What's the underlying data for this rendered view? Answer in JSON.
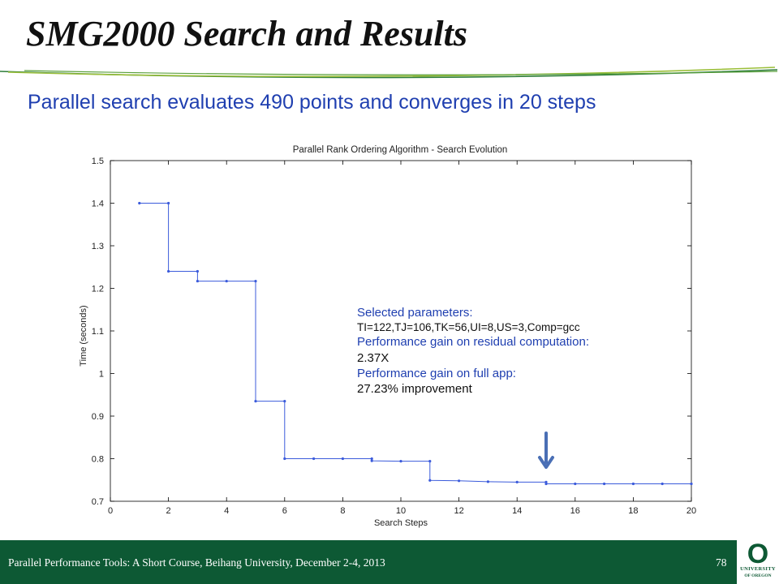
{
  "slide": {
    "title": "SMG2000 Search and Results",
    "subtitle": "Parallel search evaluates 490 points and converges in 20 steps",
    "footer": "Parallel Performance Tools: A Short Course, Beihang University, December 2-4, 2013",
    "page_number": "78",
    "logo_letter": "O",
    "logo_line1": "UNIVERSITY",
    "logo_line2": "OF OREGON",
    "colors": {
      "footer_bg": "#0d5934",
      "accent_blue": "#1f3fb0",
      "series": "#3b5bdb"
    }
  },
  "annotation": {
    "line1": "Selected parameters:",
    "line2": "TI=122,TJ=106,TK=56,UI=8,US=3,Comp=gcc",
    "line3": "Performance gain on residual computation:",
    "line4": "2.37X",
    "line5": "Performance gain on full app:",
    "line6": "27.23% improvement"
  },
  "chart_data": {
    "type": "line",
    "title": "Parallel Rank Ordering Algorithm - Search Evolution",
    "xlabel": "Search Steps",
    "ylabel": "Time (seconds)",
    "xlim": [
      0,
      20
    ],
    "ylim": [
      0.7,
      1.5
    ],
    "xticks": [
      0,
      2,
      4,
      6,
      8,
      10,
      12,
      14,
      16,
      18,
      20
    ],
    "yticks": [
      0.7,
      0.8,
      0.9,
      1,
      1.1,
      1.2,
      1.3,
      1.4,
      1.5
    ],
    "grid": false,
    "series": [
      {
        "points": [
          [
            1,
            1.4
          ],
          [
            2,
            1.4
          ],
          [
            2,
            1.24
          ],
          [
            3,
            1.24
          ],
          [
            3,
            1.217
          ],
          [
            4,
            1.217
          ],
          [
            5,
            1.217
          ],
          [
            5,
            0.935
          ],
          [
            6,
            0.935
          ],
          [
            6,
            0.8
          ],
          [
            7,
            0.8
          ],
          [
            8,
            0.8
          ],
          [
            9,
            0.8
          ],
          [
            9,
            0.795
          ],
          [
            10,
            0.794
          ],
          [
            11,
            0.794
          ],
          [
            11,
            0.749
          ],
          [
            12,
            0.748
          ],
          [
            13,
            0.746
          ],
          [
            14,
            0.745
          ],
          [
            15,
            0.745
          ],
          [
            15,
            0.741
          ],
          [
            16,
            0.741
          ],
          [
            17,
            0.741
          ],
          [
            18,
            0.741
          ],
          [
            19,
            0.741
          ],
          [
            20,
            0.741
          ]
        ]
      }
    ],
    "annotations": [
      {
        "type": "arrow",
        "x": 15,
        "y": 0.78,
        "direction": "down"
      }
    ]
  }
}
